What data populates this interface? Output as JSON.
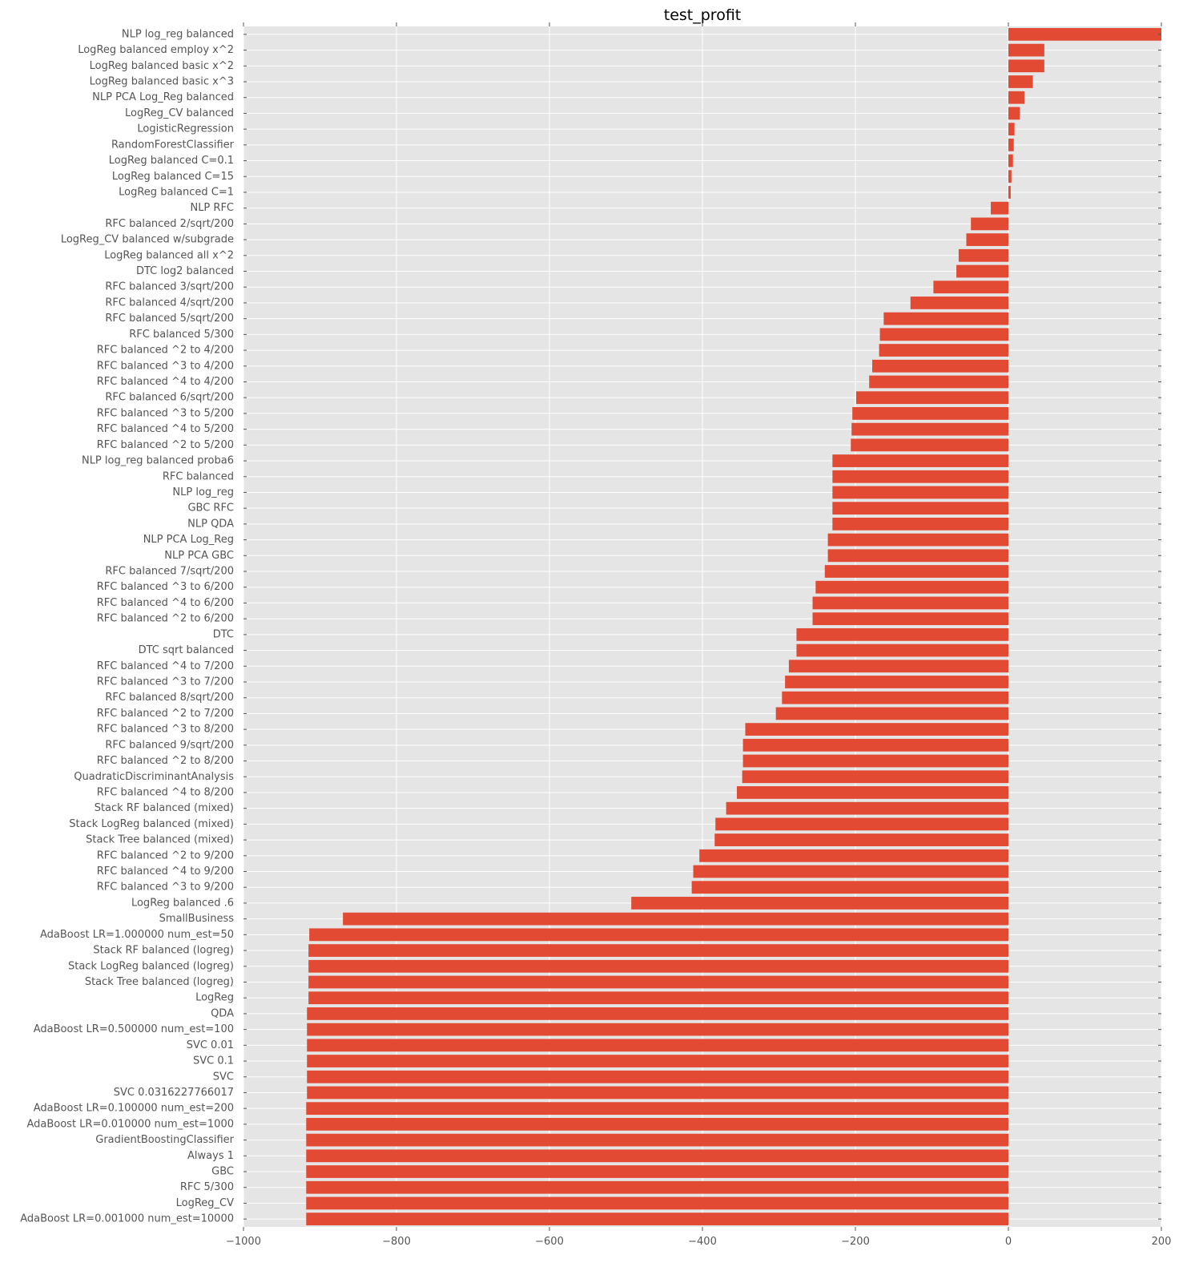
{
  "chart_data": {
    "type": "bar",
    "orientation": "horizontal",
    "title": "test_profit",
    "xlabel": "",
    "ylabel": "",
    "xlim": [
      -1000,
      200
    ],
    "xticks": [
      -1000,
      -800,
      -600,
      -400,
      -200,
      0,
      200
    ],
    "xtick_labels": [
      "−1000",
      "−800",
      "−600",
      "−400",
      "−200",
      "0",
      "200"
    ],
    "grid": true,
    "legend": "none",
    "colors": {
      "bar": "#E24A33",
      "plot_bg": "#E5E5E5",
      "grid": "#FFFFFF",
      "text": "#555555",
      "title": "#000000"
    },
    "categories": [
      "NLP log_reg balanced",
      "LogReg balanced employ x^2",
      "LogReg balanced basic x^2",
      "LogReg balanced basic x^3",
      "NLP PCA Log_Reg balanced",
      "LogReg_CV balanced",
      "LogisticRegression",
      "RandomForestClassifier",
      "LogReg balanced C=0.1",
      "LogReg balanced C=15",
      "LogReg balanced C=1",
      "NLP RFC",
      "RFC balanced 2/sqrt/200",
      "LogReg_CV balanced w/subgrade",
      "LogReg balanced all x^2",
      "DTC log2 balanced",
      "RFC balanced 3/sqrt/200",
      "RFC balanced 4/sqrt/200",
      "RFC balanced 5/sqrt/200",
      "RFC balanced 5/300",
      "RFC balanced ^2 to  4/200",
      "RFC balanced ^3 to  4/200",
      "RFC balanced ^4 to  4/200",
      "RFC balanced 6/sqrt/200",
      "RFC balanced ^3 to  5/200",
      "RFC balanced ^4 to  5/200",
      "RFC balanced ^2 to  5/200",
      "NLP log_reg balanced proba6",
      "RFC balanced",
      "NLP log_reg",
      "GBC RFC",
      "NLP QDA",
      "NLP PCA Log_Reg",
      "NLP PCA GBC",
      "RFC balanced 7/sqrt/200",
      "RFC balanced ^3 to  6/200",
      "RFC balanced ^4 to  6/200",
      "RFC balanced ^2 to  6/200",
      "DTC",
      "DTC sqrt balanced",
      "RFC balanced ^4 to  7/200",
      "RFC balanced ^3 to  7/200",
      "RFC balanced 8/sqrt/200",
      "RFC balanced ^2 to  7/200",
      "RFC balanced ^3 to  8/200",
      "RFC balanced 9/sqrt/200",
      "RFC balanced ^2 to  8/200",
      "QuadraticDiscriminantAnalysis",
      "RFC balanced ^4 to  8/200",
      "Stack RF balanced (mixed)",
      "Stack LogReg balanced (mixed)",
      "Stack Tree balanced (mixed)",
      "RFC balanced ^2 to  9/200",
      "RFC balanced ^4 to  9/200",
      "RFC balanced ^3 to  9/200",
      "LogReg balanced .6",
      "SmallBusiness",
      "AdaBoost LR=1.000000 num_est=50",
      "Stack RF balanced (logreg)",
      "Stack LogReg balanced (logreg)",
      "Stack Tree balanced (logreg)",
      "LogReg",
      "QDA",
      "AdaBoost LR=0.500000 num_est=100",
      "SVC 0.01",
      "SVC 0.1",
      "SVC",
      "SVC 0.0316227766017",
      "AdaBoost LR=0.100000 num_est=200",
      "AdaBoost LR=0.010000 num_est=1000",
      "GradientBoostingClassifier",
      "Always 1",
      "GBC",
      "RFC 5/300",
      "LogReg_CV",
      "AdaBoost LR=0.001000 num_est=10000"
    ],
    "values": [
      200,
      47,
      47,
      32,
      21,
      15,
      8,
      7,
      6,
      4,
      3,
      -23,
      -49,
      -55,
      -65,
      -68,
      -98,
      -128,
      -163,
      -168,
      -169,
      -178,
      -182,
      -199,
      -204,
      -205,
      -206,
      -230,
      -230,
      -230,
      -230,
      -230,
      -236,
      -236,
      -240,
      -252,
      -256,
      -256,
      -277,
      -277,
      -287,
      -292,
      -296,
      -304,
      -344,
      -347,
      -347,
      -348,
      -355,
      -369,
      -383,
      -384,
      -404,
      -412,
      -414,
      -493,
      -870,
      -914,
      -915,
      -915,
      -915,
      -915,
      -917,
      -917,
      -917,
      -917,
      -917,
      -917,
      -918,
      -918,
      -918,
      -918,
      -918,
      -918,
      -918,
      -918
    ]
  }
}
